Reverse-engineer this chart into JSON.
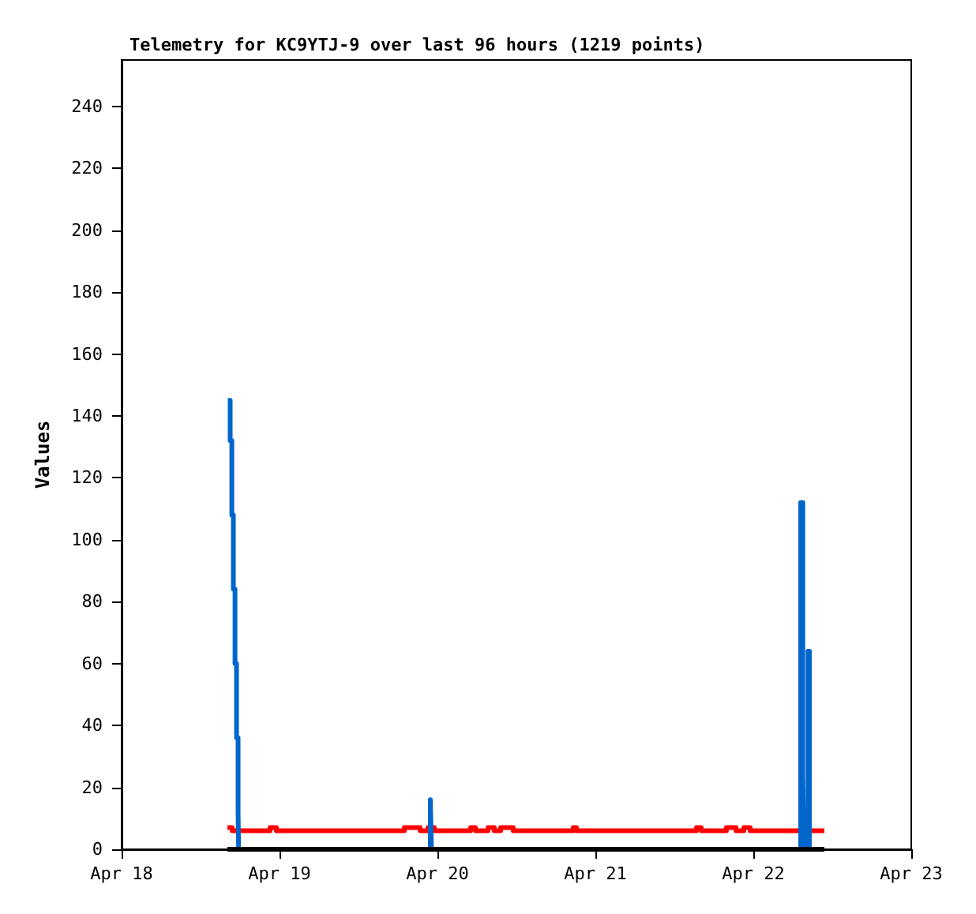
{
  "chart_data": {
    "type": "step",
    "title": "Telemetry for KC9YTJ-9 over last 96 hours (1219 points)",
    "ylabel": "Values",
    "xlim": [
      "--04-18",
      "--04-23"
    ],
    "xticks": [
      {
        "value": "--04-18",
        "label": "Apr 18"
      },
      {
        "value": "--04-19",
        "label": "Apr 19"
      },
      {
        "value": "--04-20",
        "label": "Apr 20"
      },
      {
        "value": "--04-21",
        "label": "Apr 21"
      },
      {
        "value": "--04-22",
        "label": "Apr 22"
      },
      {
        "value": "--04-23",
        "label": "Apr 23"
      }
    ],
    "ylim": [
      0,
      255
    ],
    "yticks": [
      0,
      20,
      40,
      60,
      80,
      100,
      120,
      140,
      160,
      180,
      200,
      220,
      240
    ],
    "grid": false,
    "marker": "none",
    "line_style": "solid",
    "series": [
      {
        "color": "#000000",
        "x": [
          "--04-18T16:05",
          "--04-22T10:48"
        ],
        "values": [
          0,
          0
        ]
      },
      {
        "color": "#ff0000",
        "x": [
          "--04-18T16:05",
          "--04-18T16:48",
          "--04-18T22:34",
          "--04-18T23:31",
          "--04-19T18:58",
          "--04-19T21:22",
          "--04-19T22:34",
          "--04-19T23:31",
          "--04-20T05:02",
          "--04-20T05:46",
          "--04-20T07:41",
          "--04-20T08:38",
          "--04-20T09:36",
          "--04-20T11:31",
          "--04-20T20:38",
          "--04-20T21:07",
          "--04-21T15:22",
          "--04-21T16:05",
          "--04-21T19:55",
          "--04-21T21:22",
          "--04-21T22:34",
          "--04-21T23:31",
          "--04-22T10:48"
        ],
        "values": [
          7,
          6,
          7,
          6,
          7,
          6,
          7,
          6,
          7,
          6,
          7,
          6,
          7,
          6,
          7,
          6,
          7,
          6,
          7,
          6,
          7,
          6,
          6
        ]
      },
      {
        "color": "#0066cc",
        "x": [
          "--04-18T16:09",
          "--04-18T16:30",
          "--04-18T16:45",
          "--04-18T16:59",
          "--04-18T17:14",
          "--04-18T17:28",
          "--04-18T17:42",
          "--04-18T17:47",
          "--04-19T22:55",
          "--04-19T23:05",
          "--04-22T07:12",
          "--04-22T07:31",
          "--04-22T07:41",
          "--04-22T08:19",
          "--04-22T08:31",
          "--04-22T10:48"
        ],
        "values": [
          145,
          132,
          108,
          84,
          60,
          36,
          12,
          0,
          16,
          0,
          112,
          24,
          0,
          64,
          0,
          0
        ]
      }
    ]
  }
}
